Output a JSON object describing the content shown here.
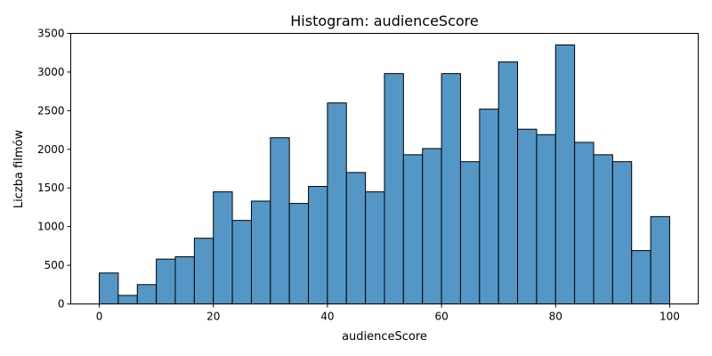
{
  "chart_data": {
    "type": "bar",
    "title": "Histogram: audienceScore",
    "xlabel": "audienceScore",
    "ylabel": "Liczba filmów",
    "xlim": [
      -5,
      105
    ],
    "ylim": [
      0,
      3500
    ],
    "x_ticks": [
      0,
      20,
      40,
      60,
      80,
      100
    ],
    "y_ticks": [
      0,
      500,
      1000,
      1500,
      2000,
      2500,
      3000,
      3500
    ],
    "bin_edges": [
      0,
      3.33,
      6.67,
      10,
      13.33,
      16.67,
      20,
      23.33,
      26.67,
      30,
      33.33,
      36.67,
      40,
      43.33,
      46.67,
      50,
      53.33,
      56.67,
      60,
      63.33,
      66.67,
      70,
      73.33,
      76.67,
      80,
      83.33,
      86.67,
      90,
      93.33,
      96.67,
      100
    ],
    "values": [
      400,
      110,
      250,
      580,
      610,
      850,
      1450,
      1080,
      1330,
      2150,
      1300,
      1520,
      2600,
      1700,
      1450,
      2980,
      1930,
      2010,
      2980,
      1840,
      2520,
      3130,
      2260,
      2190,
      3350,
      2090,
      1930,
      1840,
      690,
      1130
    ],
    "bar_color": "#5497c6",
    "grid": false,
    "legend": false
  }
}
